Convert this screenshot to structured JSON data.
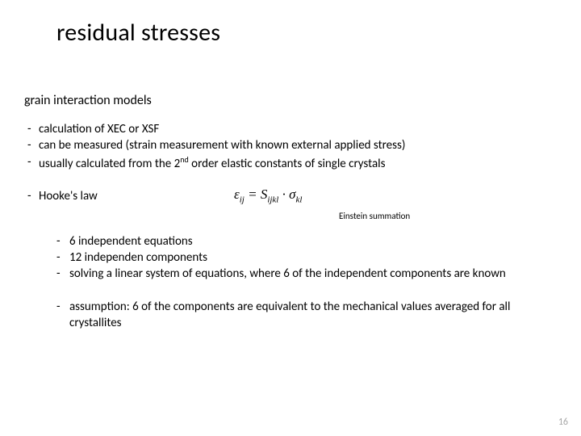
{
  "title": "residual stresses",
  "subtitle": "grain interaction models",
  "top_bullets": [
    "calculation of XEC or XSF",
    "can be measured (strain measurement with known external applied stress)"
  ],
  "top_bullet_3_pre": "usually calculated from the 2",
  "top_bullet_3_sup": "nd",
  "top_bullet_3_post": " order elastic constants of single crystals",
  "hooke_label": "Hooke's law",
  "formula": {
    "eps": "ε",
    "eps_sub": "ij",
    "eq": " = ",
    "S": "S",
    "S_sub": "ijkl",
    "dot": " · ",
    "sigma": "σ",
    "sigma_sub": "kl"
  },
  "einstein": "Einstein summation",
  "nested_bullets": [
    "6 independent equations",
    "12 independen components",
    "solving a linear system of equations, where 6 of the independent components are known"
  ],
  "nested2_bullets": [
    "assumption: 6 of the components are equivalent to the mechanical values averaged for all crystallites"
  ],
  "page_number": "16",
  "colors": {
    "background": "#ffffff",
    "text": "#000000",
    "pagenum": "#a6a6a6"
  }
}
